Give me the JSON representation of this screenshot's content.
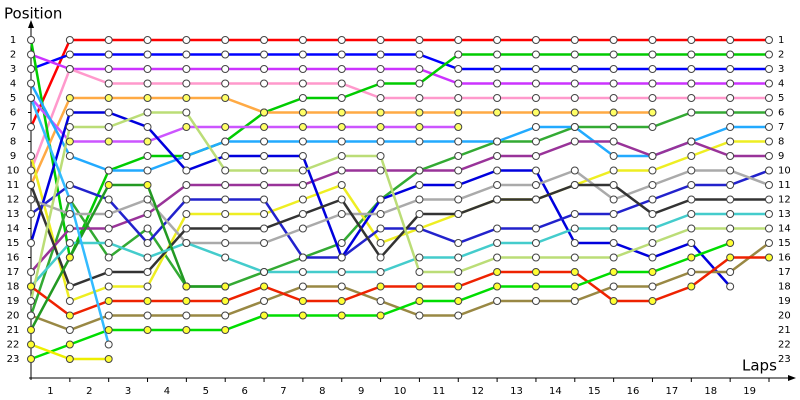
{
  "chart_data": {
    "type": "line",
    "y_axis_label": "Position",
    "x_axis_label": "Laps",
    "xlim": [
      0,
      19
    ],
    "xticks": [
      1,
      2,
      3,
      4,
      5,
      6,
      7,
      8,
      9,
      10,
      11,
      12,
      13,
      14,
      15,
      16,
      17,
      18,
      19
    ],
    "ylim": [
      1,
      23
    ],
    "y_inverted": true,
    "yticks": [
      1,
      2,
      3,
      4,
      5,
      6,
      7,
      8,
      9,
      10,
      11,
      12,
      13,
      14,
      15,
      16,
      17,
      18,
      19,
      20,
      21,
      22,
      23
    ],
    "x": [
      0,
      1,
      2,
      3,
      4,
      5,
      6,
      7,
      8,
      9,
      10,
      11,
      12,
      13,
      14,
      15,
      16,
      17,
      18,
      19
    ],
    "series": [
      {
        "color": "#ff0000",
        "marker": "#ffffff",
        "values": [
          7,
          1,
          1,
          1,
          1,
          1,
          1,
          1,
          1,
          1,
          1,
          1,
          1,
          1,
          1,
          1,
          1,
          1,
          1,
          1
        ]
      },
      {
        "color": "#0000ff",
        "marker": "#ffffff",
        "values": [
          3,
          2,
          2,
          2,
          2,
          2,
          2,
          2,
          2,
          2,
          2,
          3,
          3,
          3,
          3,
          3,
          3,
          3,
          3,
          3
        ]
      },
      {
        "color": "#cc33ff",
        "marker": "#ffffff",
        "values": [
          2,
          3,
          3,
          3,
          3,
          3,
          3,
          3,
          3,
          3,
          3,
          4,
          4,
          4,
          4,
          4,
          4,
          4,
          4,
          4
        ]
      },
      {
        "color": "#ff99cc",
        "marker": "#ffffff",
        "values": [
          10,
          3,
          4,
          4,
          4,
          4,
          4,
          4,
          4,
          5,
          5,
          5,
          5,
          5,
          5,
          5,
          5,
          5,
          5,
          5
        ]
      },
      {
        "color": "#00cc00",
        "marker": "#ffffff",
        "values": [
          1,
          16,
          10,
          9,
          9,
          8,
          6,
          5,
          5,
          4,
          4,
          2,
          2,
          2,
          2,
          2,
          2,
          2,
          2,
          2
        ]
      },
      {
        "color": "#ffaa44",
        "marker": "#ffff66",
        "values": [
          11,
          5,
          5,
          5,
          5,
          5,
          6,
          6,
          6,
          6,
          6,
          6,
          6,
          6,
          6,
          6,
          6,
          null,
          null,
          null
        ]
      },
      {
        "color": "#cc55ff",
        "marker": "#ffff66",
        "values": [
          5,
          8,
          8,
          8,
          7,
          7,
          7,
          7,
          7,
          7,
          7,
          7,
          null,
          null,
          null,
          null,
          null,
          null,
          null,
          null
        ]
      },
      {
        "color": "#33aa33",
        "marker": "#ffffff",
        "values": [
          20,
          12,
          16,
          14,
          18,
          18,
          17,
          16,
          15,
          12,
          10,
          9,
          8,
          8,
          7,
          7,
          7,
          6,
          6,
          6
        ]
      },
      {
        "color": "#22aaff",
        "marker": "#ffffff",
        "values": [
          4,
          9,
          10,
          10,
          9,
          8,
          8,
          8,
          8,
          8,
          8,
          8,
          8,
          7,
          7,
          9,
          9,
          8,
          7,
          7
        ]
      },
      {
        "color": "#eeee22",
        "marker": "#ffffff",
        "values": [
          9,
          19,
          18,
          18,
          13,
          13,
          13,
          12,
          11,
          15,
          14,
          13,
          12,
          12,
          11,
          10,
          10,
          9,
          8,
          8
        ]
      },
      {
        "color": "#993399",
        "marker": "#ffffff",
        "values": [
          17,
          14,
          14,
          13,
          11,
          11,
          11,
          11,
          10,
          10,
          10,
          10,
          9,
          9,
          8,
          8,
          9,
          8,
          9,
          9
        ]
      },
      {
        "color": "#0000dd",
        "marker": "#ffffff",
        "values": [
          15,
          6,
          6,
          7,
          10,
          9,
          9,
          9,
          16,
          12,
          11,
          11,
          10,
          10,
          15,
          15,
          16,
          15,
          18,
          null
        ]
      },
      {
        "color": "#2222cc",
        "marker": "#ffffff",
        "values": [
          13,
          11,
          12,
          15,
          12,
          12,
          12,
          16,
          16,
          14,
          14,
          15,
          14,
          14,
          13,
          13,
          12,
          11,
          11,
          10
        ]
      },
      {
        "color": "#aaaaaa",
        "marker": "#ffffff",
        "values": [
          12,
          13,
          13,
          12,
          15,
          15,
          15,
          14,
          13,
          13,
          12,
          12,
          11,
          11,
          10,
          12,
          11,
          10,
          10,
          11
        ]
      },
      {
        "color": "#333333",
        "marker": "#ffffff",
        "values": [
          11,
          18,
          17,
          17,
          14,
          14,
          14,
          13,
          12,
          16,
          13,
          13,
          12,
          12,
          11,
          11,
          13,
          12,
          12,
          12
        ]
      },
      {
        "color": "#44cccc",
        "marker": "#ffffff",
        "values": [
          18,
          15,
          15,
          16,
          15,
          16,
          17,
          17,
          17,
          17,
          16,
          16,
          15,
          15,
          14,
          14,
          14,
          13,
          13,
          13
        ]
      },
      {
        "color": "#bbdd77",
        "marker": "#ffffff",
        "values": [
          19,
          7,
          7,
          6,
          6,
          10,
          10,
          10,
          9,
          9,
          17,
          17,
          16,
          16,
          16,
          16,
          15,
          14,
          14,
          14
        ]
      },
      {
        "color": "#998844",
        "marker": "#ffffff",
        "values": [
          20,
          21,
          20,
          20,
          20,
          20,
          19,
          18,
          18,
          19,
          20,
          20,
          19,
          19,
          19,
          18,
          18,
          17,
          17,
          15
        ]
      },
      {
        "color": "#ee2200",
        "marker": "#ffff33",
        "values": [
          18,
          20,
          19,
          19,
          19,
          19,
          18,
          19,
          19,
          18,
          18,
          18,
          17,
          17,
          17,
          19,
          19,
          18,
          16,
          16
        ]
      },
      {
        "color": "#00dd00",
        "marker": "#ffff33",
        "values": [
          23,
          22,
          21,
          21,
          21,
          21,
          20,
          20,
          20,
          20,
          19,
          19,
          18,
          18,
          18,
          17,
          17,
          16,
          15,
          null
        ]
      },
      {
        "color": "#229922",
        "marker": "#ffff33",
        "values": [
          21,
          16,
          11,
          11,
          18,
          18,
          null,
          null,
          null,
          null,
          null,
          null,
          null,
          null,
          null,
          null,
          null,
          null,
          null,
          null
        ]
      },
      {
        "color": "#33bbff",
        "marker": "#ffffff",
        "values": [
          5,
          12,
          22,
          null,
          null,
          null,
          null,
          null,
          null,
          null,
          null,
          null,
          null,
          null,
          null,
          null,
          null,
          null,
          null,
          null
        ]
      },
      {
        "color": "#eeee00",
        "marker": "#ffff33",
        "values": [
          22,
          23,
          23,
          null,
          null,
          null,
          null,
          null,
          null,
          null,
          null,
          null,
          null,
          null,
          null,
          null,
          null,
          null,
          null,
          null
        ]
      }
    ]
  }
}
